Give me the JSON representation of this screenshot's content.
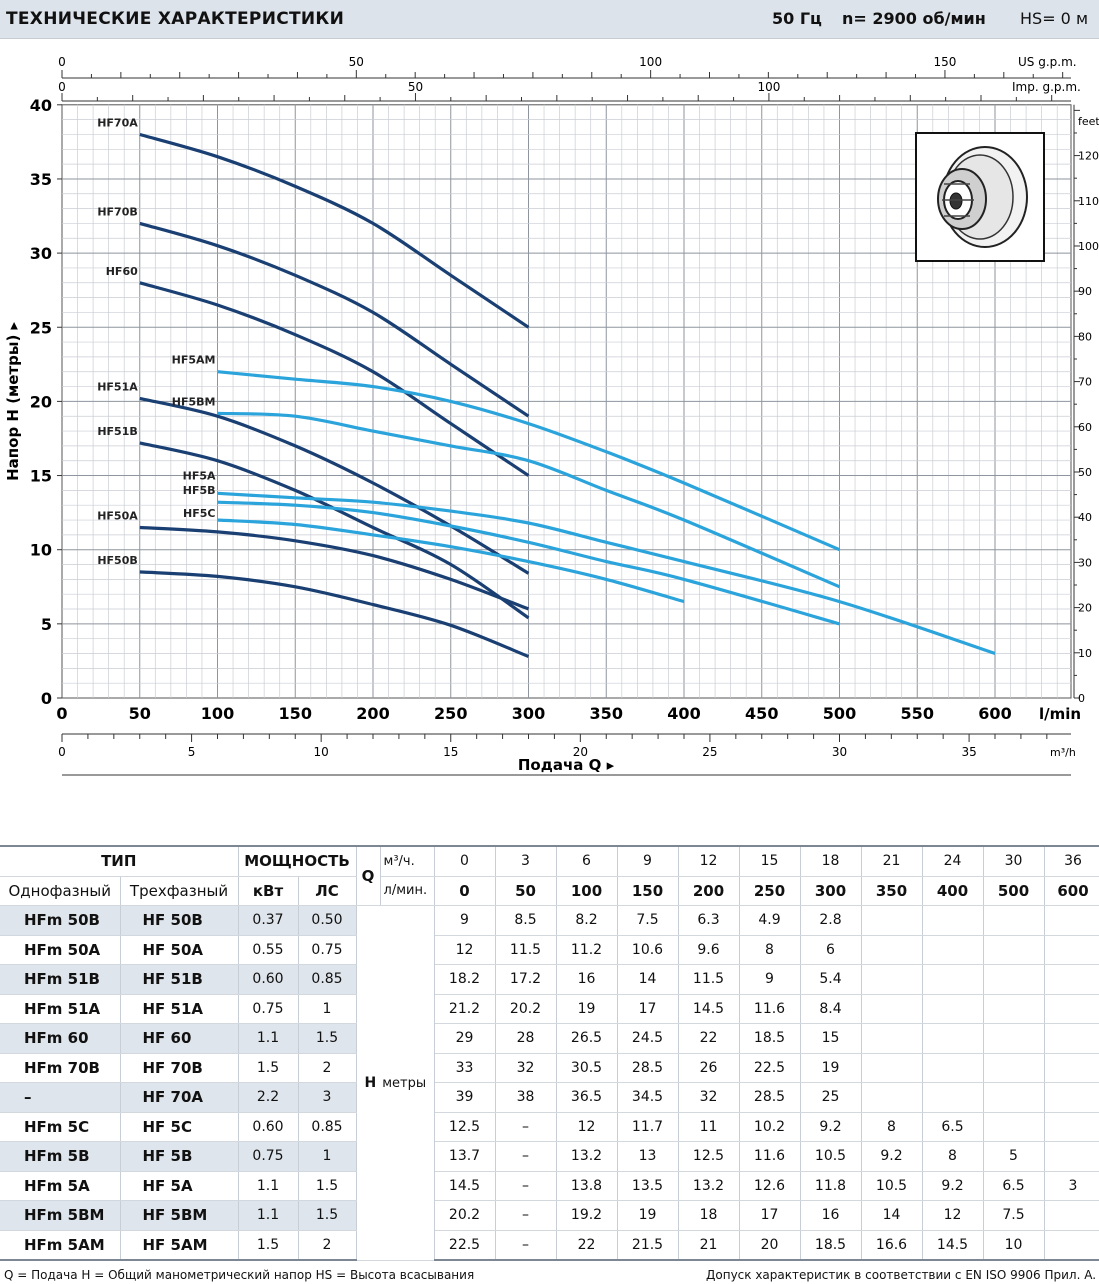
{
  "header": {
    "title": "ТЕХНИЧЕСКИЕ ХАРАКТЕРИСТИКИ",
    "frequency": "50 Гц",
    "rpm": "n= 2900  об/мин",
    "hs": "HS= 0 м"
  },
  "chart_data": {
    "type": "line",
    "ylabel": "Напор H (метры) ▸",
    "xlabel": "Подача Q ▸",
    "x_unit_main": "l/min",
    "x_unit_m3h": "m³/h",
    "x_unit_usgpm": "US g.p.m.",
    "x_unit_impgpm": "Imp. g.p.m.",
    "y_unit_feet": "feet",
    "xlim": [
      0,
      650
    ],
    "ylim": [
      0,
      40
    ],
    "x_ticks": [
      0,
      50,
      100,
      150,
      200,
      250,
      300,
      350,
      400,
      450,
      500,
      550,
      600
    ],
    "y_ticks": [
      0,
      5,
      10,
      15,
      20,
      25,
      30,
      35,
      40
    ],
    "m3h_ticks": [
      0,
      5,
      10,
      15,
      20,
      25,
      30,
      35
    ],
    "usgpm_ticks": [
      0,
      50,
      100,
      150
    ],
    "impgpm_ticks": [
      0,
      50,
      100
    ],
    "feet_ticks": [
      0,
      10,
      20,
      30,
      40,
      50,
      60,
      70,
      80,
      90,
      100,
      110,
      120
    ],
    "series": [
      {
        "name": "HF70A",
        "color": "#1a3f73",
        "x": [
          50,
          100,
          150,
          200,
          250,
          300
        ],
        "y": [
          38,
          36.5,
          34.5,
          32,
          28.5,
          25
        ]
      },
      {
        "name": "HF70B",
        "color": "#1a3f73",
        "x": [
          50,
          100,
          150,
          200,
          250,
          300
        ],
        "y": [
          32,
          30.5,
          28.5,
          26,
          22.5,
          19
        ]
      },
      {
        "name": "HF60",
        "color": "#1a3f73",
        "x": [
          50,
          100,
          150,
          200,
          250,
          300
        ],
        "y": [
          28,
          26.5,
          24.5,
          22,
          18.5,
          15
        ]
      },
      {
        "name": "HF51A",
        "color": "#1a3f73",
        "x": [
          50,
          100,
          150,
          200,
          250,
          300
        ],
        "y": [
          20.2,
          19,
          17,
          14.5,
          11.6,
          8.4
        ]
      },
      {
        "name": "HF51B",
        "color": "#1a3f73",
        "x": [
          50,
          100,
          150,
          200,
          250,
          300
        ],
        "y": [
          17.2,
          16,
          14,
          11.5,
          9,
          5.4
        ]
      },
      {
        "name": "HF50A",
        "color": "#1a3f73",
        "x": [
          50,
          100,
          150,
          200,
          250,
          300
        ],
        "y": [
          11.5,
          11.2,
          10.6,
          9.6,
          8,
          6
        ]
      },
      {
        "name": "HF50B",
        "color": "#1a3f73",
        "x": [
          50,
          100,
          150,
          200,
          250,
          300
        ],
        "y": [
          8.5,
          8.2,
          7.5,
          6.3,
          4.9,
          2.8
        ]
      },
      {
        "name": "HF5AM",
        "color": "#2ba4dc",
        "x": [
          100,
          150,
          200,
          250,
          300,
          350,
          400,
          500
        ],
        "y": [
          22,
          21.5,
          21,
          20,
          18.5,
          16.6,
          14.5,
          10
        ]
      },
      {
        "name": "HF5BM",
        "color": "#2ba4dc",
        "x": [
          100,
          150,
          200,
          250,
          300,
          350,
          400,
          500
        ],
        "y": [
          19.2,
          19,
          18,
          17,
          16,
          14,
          12,
          7.5
        ]
      },
      {
        "name": "HF5A",
        "color": "#2ba4dc",
        "x": [
          100,
          150,
          200,
          250,
          300,
          350,
          400,
          500,
          600
        ],
        "y": [
          13.8,
          13.5,
          13.2,
          12.6,
          11.8,
          10.5,
          9.2,
          6.5,
          3
        ]
      },
      {
        "name": "HF5B",
        "color": "#2ba4dc",
        "x": [
          100,
          150,
          200,
          250,
          300,
          350,
          400,
          500
        ],
        "y": [
          13.2,
          13,
          12.5,
          11.6,
          10.5,
          9.2,
          8,
          5
        ]
      },
      {
        "name": "HF5C",
        "color": "#2ba4dc",
        "x": [
          100,
          150,
          200,
          250,
          300,
          350,
          400
        ],
        "y": [
          12,
          11.7,
          11,
          10.2,
          9.2,
          8,
          6.5
        ]
      }
    ]
  },
  "table": {
    "h_type": "ТИП",
    "h_power": "МОЩНОСТЬ",
    "h_q": "Q",
    "h_m3h": "м³/ч.",
    "h_lmin": "л/мин.",
    "h_single": "Однофазный",
    "h_three": "Трехфазный",
    "h_kw": "кВт",
    "h_hp": "ЛС",
    "h_label": "H",
    "h_unit": "метры",
    "q_m3h": [
      "0",
      "3",
      "6",
      "9",
      "12",
      "15",
      "18",
      "21",
      "24",
      "30",
      "36"
    ],
    "q_lmin": [
      "0",
      "50",
      "100",
      "150",
      "200",
      "250",
      "300",
      "350",
      "400",
      "500",
      "600"
    ],
    "rows": [
      {
        "single": "HFm 50B",
        "three": "HF 50B",
        "kw": "0.37",
        "hp": "0.50",
        "h": [
          "9",
          "8.5",
          "8.2",
          "7.5",
          "6.3",
          "4.9",
          "2.8",
          "",
          "",
          "",
          ""
        ]
      },
      {
        "single": "HFm 50A",
        "three": "HF 50A",
        "kw": "0.55",
        "hp": "0.75",
        "h": [
          "12",
          "11.5",
          "11.2",
          "10.6",
          "9.6",
          "8",
          "6",
          "",
          "",
          "",
          ""
        ]
      },
      {
        "single": "HFm 51B",
        "three": "HF 51B",
        "kw": "0.60",
        "hp": "0.85",
        "h": [
          "18.2",
          "17.2",
          "16",
          "14",
          "11.5",
          "9",
          "5.4",
          "",
          "",
          "",
          ""
        ]
      },
      {
        "single": "HFm 51A",
        "three": "HF 51A",
        "kw": "0.75",
        "hp": "1",
        "h": [
          "21.2",
          "20.2",
          "19",
          "17",
          "14.5",
          "11.6",
          "8.4",
          "",
          "",
          "",
          ""
        ]
      },
      {
        "single": "HFm 60",
        "three": "HF 60",
        "kw": "1.1",
        "hp": "1.5",
        "h": [
          "29",
          "28",
          "26.5",
          "24.5",
          "22",
          "18.5",
          "15",
          "",
          "",
          "",
          ""
        ]
      },
      {
        "single": "HFm 70B",
        "three": "HF 70B",
        "kw": "1.5",
        "hp": "2",
        "h": [
          "33",
          "32",
          "30.5",
          "28.5",
          "26",
          "22.5",
          "19",
          "",
          "",
          "",
          ""
        ]
      },
      {
        "single": "–",
        "three": "HF 70A",
        "kw": "2.2",
        "hp": "3",
        "h": [
          "39",
          "38",
          "36.5",
          "34.5",
          "32",
          "28.5",
          "25",
          "",
          "",
          "",
          ""
        ]
      },
      {
        "single": "HFm 5C",
        "three": "HF 5C",
        "kw": "0.60",
        "hp": "0.85",
        "h": [
          "12.5",
          "–",
          "12",
          "11.7",
          "11",
          "10.2",
          "9.2",
          "8",
          "6.5",
          "",
          ""
        ]
      },
      {
        "single": "HFm 5B",
        "three": "HF 5B",
        "kw": "0.75",
        "hp": "1",
        "h": [
          "13.7",
          "–",
          "13.2",
          "13",
          "12.5",
          "11.6",
          "10.5",
          "9.2",
          "8",
          "5",
          ""
        ]
      },
      {
        "single": "HFm 5A",
        "three": "HF 5A",
        "kw": "1.1",
        "hp": "1.5",
        "h": [
          "14.5",
          "–",
          "13.8",
          "13.5",
          "13.2",
          "12.6",
          "11.8",
          "10.5",
          "9.2",
          "6.5",
          "3"
        ]
      },
      {
        "single": "HFm 5BM",
        "three": "HF 5BM",
        "kw": "1.1",
        "hp": "1.5",
        "h": [
          "20.2",
          "–",
          "19.2",
          "19",
          "18",
          "17",
          "16",
          "14",
          "12",
          "7.5",
          ""
        ]
      },
      {
        "single": "HFm 5AM",
        "three": "HF 5AM",
        "kw": "1.5",
        "hp": "2",
        "h": [
          "22.5",
          "–",
          "22",
          "21.5",
          "21",
          "20",
          "18.5",
          "16.6",
          "14.5",
          "10",
          ""
        ]
      }
    ]
  },
  "footer": {
    "left": "Q = Подача   H = Общий манометрический напор   HS = Высота всасывания",
    "right": "Допуск характеристик в соответствии с EN ISO 9906 Прил. A."
  },
  "colors": {
    "dark_curve": "#1a3f73",
    "light_curve": "#2ba4dc",
    "grid": "#b8bec6",
    "header_bg": "#dde3ea"
  }
}
